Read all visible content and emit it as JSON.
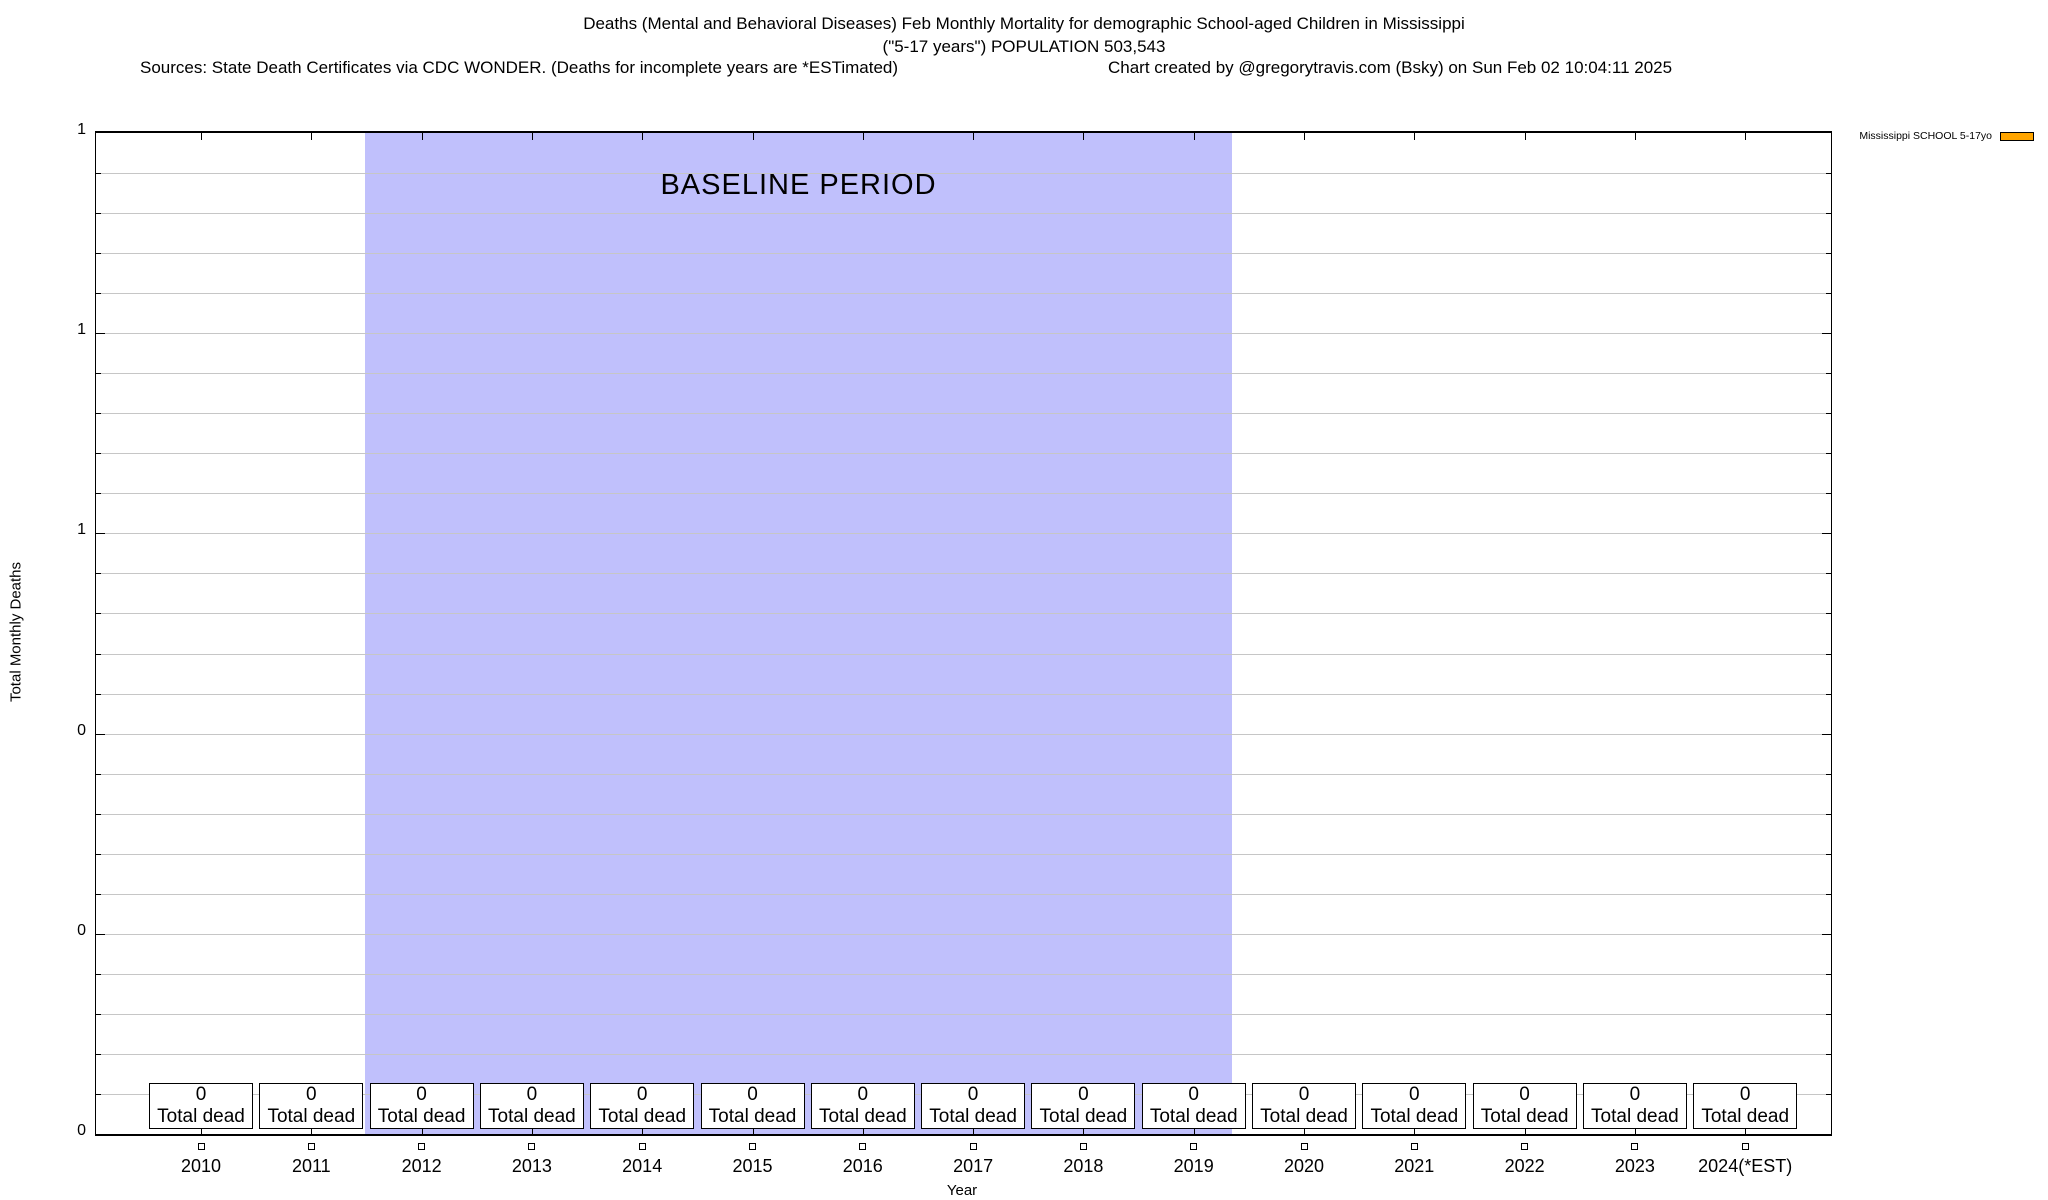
{
  "header": {
    "title_line1": "Deaths (Mental and Behavioral Diseases) Feb Monthly Mortality for demographic School-aged Children in Mississippi",
    "title_line2": "(\"5-17 years\") POPULATION 503,543",
    "sources": "Sources: State Death Certificates via CDC WONDER. (Deaths for incomplete years are *ESTimated)",
    "credit": "Chart created by @gregorytravis.com (Bsky) on Sun Feb 02 10:04:11 2025"
  },
  "legend": {
    "label": "Mississippi SCHOOL 5-17yo",
    "swatch_color": "#ffa500"
  },
  "annotation": {
    "baseline_label": "BASELINE PERIOD"
  },
  "axes": {
    "ylabel": "Total Monthly Deaths",
    "xlabel": "Year",
    "y_tick_labels": [
      "1",
      "1",
      "1",
      "0",
      "0",
      "0"
    ]
  },
  "columns": [
    {
      "year": "2010",
      "value": "0",
      "label": "Total dead"
    },
    {
      "year": "2011",
      "value": "0",
      "label": "Total dead"
    },
    {
      "year": "2012",
      "value": "0",
      "label": "Total dead"
    },
    {
      "year": "2013",
      "value": "0",
      "label": "Total dead"
    },
    {
      "year": "2014",
      "value": "0",
      "label": "Total dead"
    },
    {
      "year": "2015",
      "value": "0",
      "label": "Total dead"
    },
    {
      "year": "2016",
      "value": "0",
      "label": "Total dead"
    },
    {
      "year": "2017",
      "value": "0",
      "label": "Total dead"
    },
    {
      "year": "2018",
      "value": "0",
      "label": "Total dead"
    },
    {
      "year": "2019",
      "value": "0",
      "label": "Total dead"
    },
    {
      "year": "2020",
      "value": "0",
      "label": "Total dead"
    },
    {
      "year": "2021",
      "value": "0",
      "label": "Total dead"
    },
    {
      "year": "2022",
      "value": "0",
      "label": "Total dead"
    },
    {
      "year": "2023",
      "value": "0",
      "label": "Total dead"
    },
    {
      "year": "2024(*EST)",
      "value": "0",
      "label": "Total dead"
    }
  ],
  "chart_data": {
    "type": "bar",
    "title": "Deaths (Mental and Behavioral Diseases) Feb Monthly Mortality for demographic School-aged Children in Mississippi (\"5-17 years\") POPULATION 503,543",
    "xlabel": "Year",
    "ylabel": "Total Monthly Deaths",
    "categories": [
      "2010",
      "2011",
      "2012",
      "2013",
      "2014",
      "2015",
      "2016",
      "2017",
      "2018",
      "2019",
      "2020",
      "2021",
      "2022",
      "2023",
      "2024(*EST)"
    ],
    "series": [
      {
        "name": "Mississippi SCHOOL 5-17yo",
        "color": "#ffa500",
        "values": [
          0,
          0,
          0,
          0,
          0,
          0,
          0,
          0,
          0,
          0,
          0,
          0,
          0,
          0,
          0
        ]
      }
    ],
    "value_box_labels": [
      "Total dead"
    ],
    "ylim": [
      0,
      1
    ],
    "ytick_display_labels": [
      "1",
      "1",
      "1",
      "0",
      "0",
      "0"
    ],
    "grid": "horizontal-on",
    "legend_position": "top-right-outside",
    "annotations": [
      {
        "type": "region",
        "label": "BASELINE PERIOD",
        "x_start": 2011.5,
        "x_end": 2019.4,
        "color": "#bfbffa"
      }
    ]
  },
  "colors": {
    "baseline_region": "#bfbffa",
    "legend_swatch": "#ffa500",
    "gridline": "#c6c6c6",
    "point_marker": "open-square"
  }
}
